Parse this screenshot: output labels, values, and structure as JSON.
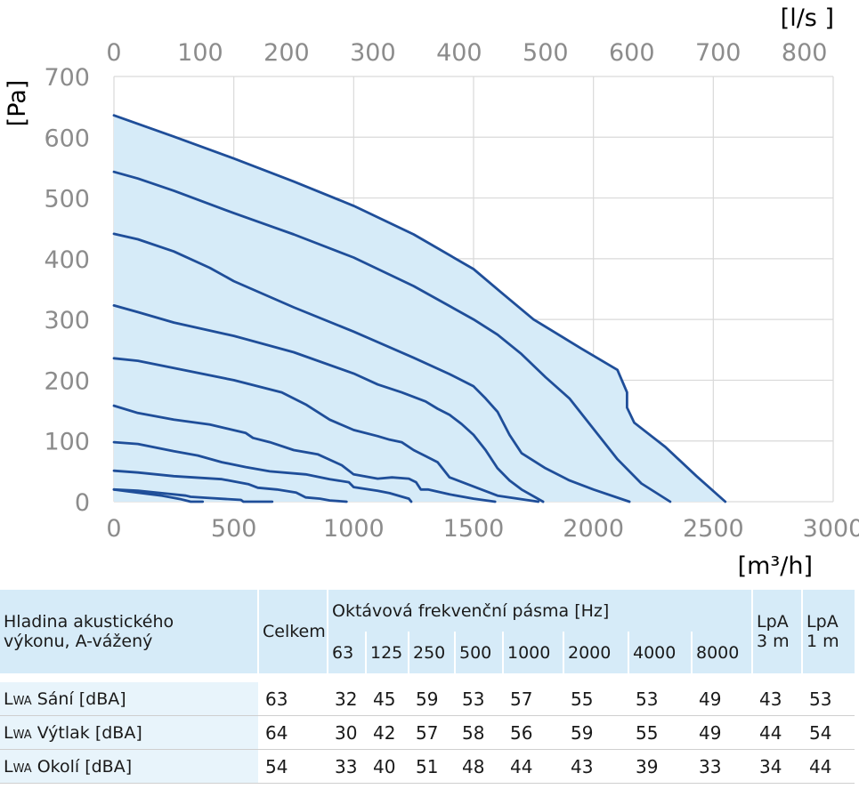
{
  "chart_data": {
    "type": "line",
    "x_unit_bottom": "[m³/h]",
    "x_unit_top": "[l/s ]",
    "y_unit": "[Pa]",
    "xlim": [
      0,
      3000
    ],
    "ylim": [
      0,
      700
    ],
    "x_ticks": [
      0,
      500,
      1000,
      1500,
      2000,
      2500,
      3000
    ],
    "x_tick_labels": [
      "0",
      "500",
      "1000",
      "1500",
      "2000",
      "2500",
      "3000"
    ],
    "x2_ticks": [
      0,
      100,
      200,
      300,
      400,
      500,
      600,
      700,
      800
    ],
    "x2_tick_labels": [
      "0",
      "100",
      "200",
      "300",
      "400",
      "500",
      "600",
      "700",
      "800"
    ],
    "y_ticks": [
      0,
      100,
      200,
      300,
      400,
      500,
      600,
      700
    ],
    "y_tick_labels": [
      "0",
      "100",
      "200",
      "300",
      "400",
      "500",
      "600",
      "700"
    ],
    "grid": true,
    "series": [
      {
        "points": [
          [
            0,
            636
          ],
          [
            250,
            601
          ],
          [
            500,
            565
          ],
          [
            750,
            527
          ],
          [
            1000,
            487
          ],
          [
            1250,
            440
          ],
          [
            1500,
            383
          ],
          [
            1620,
            343
          ],
          [
            1750,
            300
          ],
          [
            1950,
            252
          ],
          [
            2100,
            217
          ],
          [
            2140,
            180
          ],
          [
            2140,
            155
          ],
          [
            2170,
            130
          ],
          [
            2300,
            90
          ],
          [
            2430,
            42
          ],
          [
            2550,
            0
          ]
        ]
      },
      {
        "points": [
          [
            0,
            543
          ],
          [
            100,
            532
          ],
          [
            250,
            512
          ],
          [
            500,
            475
          ],
          [
            750,
            440
          ],
          [
            1000,
            402
          ],
          [
            1250,
            355
          ],
          [
            1500,
            300
          ],
          [
            1600,
            275
          ],
          [
            1700,
            243
          ],
          [
            1800,
            205
          ],
          [
            1900,
            170
          ],
          [
            2000,
            120
          ],
          [
            2100,
            70
          ],
          [
            2200,
            30
          ],
          [
            2320,
            0
          ]
        ]
      },
      {
        "points": [
          [
            0,
            441
          ],
          [
            100,
            432
          ],
          [
            250,
            412
          ],
          [
            400,
            385
          ],
          [
            500,
            363
          ],
          [
            750,
            320
          ],
          [
            1000,
            280
          ],
          [
            1250,
            237
          ],
          [
            1400,
            210
          ],
          [
            1500,
            190
          ],
          [
            1550,
            170
          ],
          [
            1600,
            148
          ],
          [
            1650,
            110
          ],
          [
            1700,
            80
          ],
          [
            1800,
            55
          ],
          [
            1900,
            35
          ],
          [
            2000,
            20
          ],
          [
            2150,
            0
          ]
        ]
      },
      {
        "points": [
          [
            0,
            323
          ],
          [
            100,
            312
          ],
          [
            250,
            295
          ],
          [
            500,
            273
          ],
          [
            750,
            246
          ],
          [
            1000,
            211
          ],
          [
            1100,
            193
          ],
          [
            1200,
            180
          ],
          [
            1300,
            165
          ],
          [
            1350,
            153
          ],
          [
            1400,
            143
          ],
          [
            1450,
            128
          ],
          [
            1500,
            110
          ],
          [
            1550,
            85
          ],
          [
            1600,
            55
          ],
          [
            1650,
            35
          ],
          [
            1700,
            20
          ],
          [
            1790,
            0
          ]
        ]
      },
      {
        "points": [
          [
            0,
            236
          ],
          [
            100,
            232
          ],
          [
            250,
            220
          ],
          [
            500,
            200
          ],
          [
            700,
            180
          ],
          [
            800,
            160
          ],
          [
            900,
            135
          ],
          [
            1000,
            118
          ],
          [
            1100,
            108
          ],
          [
            1150,
            102
          ],
          [
            1200,
            98
          ],
          [
            1250,
            85
          ],
          [
            1300,
            75
          ],
          [
            1350,
            65
          ],
          [
            1380,
            50
          ],
          [
            1400,
            40
          ],
          [
            1500,
            25
          ],
          [
            1600,
            10
          ],
          [
            1770,
            0
          ]
        ]
      },
      {
        "points": [
          [
            0,
            158
          ],
          [
            100,
            146
          ],
          [
            250,
            135
          ],
          [
            400,
            127
          ],
          [
            550,
            113
          ],
          [
            580,
            105
          ],
          [
            650,
            98
          ],
          [
            750,
            85
          ],
          [
            850,
            78
          ],
          [
            950,
            60
          ],
          [
            1000,
            45
          ],
          [
            1100,
            38
          ],
          [
            1160,
            40
          ],
          [
            1230,
            38
          ],
          [
            1260,
            32
          ],
          [
            1280,
            20
          ],
          [
            1310,
            20
          ],
          [
            1400,
            12
          ],
          [
            1500,
            5
          ],
          [
            1590,
            0
          ]
        ]
      },
      {
        "points": [
          [
            0,
            98
          ],
          [
            100,
            95
          ],
          [
            250,
            83
          ],
          [
            350,
            76
          ],
          [
            450,
            65
          ],
          [
            550,
            57
          ],
          [
            650,
            50
          ],
          [
            800,
            45
          ],
          [
            900,
            37
          ],
          [
            980,
            32
          ],
          [
            1000,
            24
          ],
          [
            1100,
            18
          ],
          [
            1150,
            14
          ],
          [
            1230,
            5
          ],
          [
            1240,
            0
          ]
        ]
      },
      {
        "points": [
          [
            0,
            51
          ],
          [
            100,
            48
          ],
          [
            250,
            42
          ],
          [
            450,
            37
          ],
          [
            560,
            29
          ],
          [
            600,
            23
          ],
          [
            680,
            20
          ],
          [
            760,
            15
          ],
          [
            800,
            7
          ],
          [
            860,
            5
          ],
          [
            900,
            2
          ],
          [
            970,
            0
          ]
        ]
      },
      {
        "points": [
          [
            0,
            20
          ],
          [
            100,
            18
          ],
          [
            200,
            14
          ],
          [
            300,
            10
          ],
          [
            320,
            8
          ],
          [
            400,
            6
          ],
          [
            530,
            3
          ],
          [
            540,
            0
          ],
          [
            600,
            0
          ],
          [
            660,
            0
          ]
        ]
      },
      {
        "points": [
          [
            0,
            20
          ],
          [
            100,
            15
          ],
          [
            200,
            10
          ],
          [
            280,
            4
          ],
          [
            300,
            2
          ],
          [
            320,
            0
          ],
          [
            370,
            0
          ]
        ]
      }
    ]
  },
  "table": {
    "head_label_line1": "Hladina akustického",
    "head_label_line2": "výkonu, A-vážený",
    "celkem": "Celkem",
    "octave_title": "Oktávová frekvenční pásma [Hz]",
    "bands": [
      "63",
      "125",
      "250",
      "500",
      "1000",
      "2000",
      "4000",
      "8000"
    ],
    "lpa3_line1": "LpA",
    "lpa3_line2": "3 m",
    "lpa1_line1": "LpA",
    "lpa1_line2": "1 m",
    "rows": [
      {
        "prefix": "L",
        "sub": "WA",
        "label": "Sání [dBA]",
        "celkem": "63",
        "bands": [
          "32",
          "45",
          "59",
          "53",
          "57",
          "55",
          "53",
          "49"
        ],
        "lpa3": "43",
        "lpa1": "53"
      },
      {
        "prefix": "L",
        "sub": "WA",
        "label": "Výtlak [dBA]",
        "celkem": "64",
        "bands": [
          "30",
          "42",
          "57",
          "58",
          "56",
          "59",
          "55",
          "49"
        ],
        "lpa3": "44",
        "lpa1": "54"
      },
      {
        "prefix": "L",
        "sub": "WA",
        "label": "Okolí [dBA]",
        "celkem": "54",
        "bands": [
          "33",
          "40",
          "51",
          "48",
          "44",
          "43",
          "39",
          "33"
        ],
        "lpa3": "34",
        "lpa1": "44"
      }
    ]
  }
}
